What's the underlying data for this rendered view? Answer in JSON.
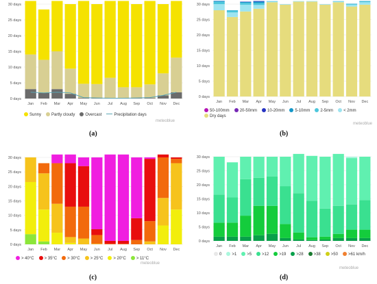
{
  "charts": [
    {
      "id": "a",
      "caption": "(a)",
      "credit": "meteoblue",
      "colors": {
        "Sunny": "#f5e200",
        "Partly cloudy": "#d8cf93",
        "Overcast": "#6b6b6b",
        "Precipitation days": "#5ba6b5"
      },
      "legend": [
        "Sunny",
        "Partly cloudy",
        "Overcast",
        "Precipitation days"
      ],
      "chart_data": {
        "type": "bar",
        "stacked": true,
        "categories": [
          "Jan",
          "Feb",
          "Mar",
          "Apr",
          "May",
          "Jun",
          "Jul",
          "Aug",
          "Sep",
          "Oct",
          "Nov",
          "Dec"
        ],
        "yticks": [
          "0 days",
          "5 days",
          "10 days",
          "15 days",
          "20 days",
          "25 days",
          "30 days"
        ],
        "ylim": [
          0,
          30
        ],
        "series": [
          {
            "name": "Overcast",
            "values": [
              3,
              1.8,
              3,
              1.5,
              0.2,
              0.1,
              0.1,
              0.1,
              0.1,
              0.2,
              1,
              2
            ]
          },
          {
            "name": "Partly cloudy",
            "values": [
              11,
              10.5,
              12,
              8,
              4.5,
              4.5,
              6.5,
              3.5,
              3.5,
              4.3,
              7,
              11
            ]
          },
          {
            "name": "Sunny",
            "values": [
              17,
              16,
              16,
              20.5,
              26.3,
              25.4,
              24.4,
              27.4,
              26.4,
              26.5,
              22,
              18
            ]
          }
        ],
        "line": {
          "name": "Precipitation days",
          "values": [
            2,
            1.8,
            2,
            1.8,
            0.3,
            0.2,
            0.1,
            0.1,
            0.2,
            0.3,
            1,
            2
          ]
        }
      }
    },
    {
      "id": "b",
      "caption": "(b)",
      "credit": "meteoblue",
      "colors": {
        "Dry days": "#e6dc7d",
        "< 2mm": "#9de4f0",
        "2-5mm": "#4cc6dc",
        "5-10mm": "#1497c8",
        "10-20mm": "#2633c2",
        "20-50mm": "#7628b5",
        "50-100mm": "#b515b5"
      },
      "legend": [
        "50-100mm",
        "20-50mm",
        "10-20mm",
        "5-10mm",
        "2-5mm",
        "< 2mm",
        "Dry days"
      ],
      "chart_data": {
        "type": "bar",
        "stacked": true,
        "categories": [
          "Jan",
          "Feb",
          "Mar",
          "Apr",
          "May",
          "Jun",
          "Jul",
          "Aug",
          "Sep",
          "Oct",
          "Nov",
          "Dec"
        ],
        "yticks": [
          "0 days",
          "5 days",
          "10 days",
          "15 days",
          "20 days",
          "25 days",
          "30 days"
        ],
        "ylim": [
          0,
          30
        ],
        "series": [
          {
            "name": "Dry days",
            "values": [
              28,
              25.8,
              27.6,
              28.5,
              30.6,
              29.8,
              30.8,
              30.8,
              29.8,
              30.6,
              29.2,
              29.8
            ]
          },
          {
            "name": "< 2mm",
            "values": [
              2,
              1.5,
              2.2,
              1.2,
              0.2,
              0.1,
              0.1,
              0.1,
              0.1,
              0.2,
              0.6,
              0.8
            ]
          },
          {
            "name": "2-5mm",
            "values": [
              0.8,
              0.6,
              0.6,
              0.6,
              0.1,
              0.05,
              0.05,
              0.05,
              0.05,
              0.1,
              0.2,
              0.3
            ]
          },
          {
            "name": "5-10mm",
            "values": [
              0.2,
              0.1,
              0.3,
              0.5,
              0.05,
              0,
              0,
              0,
              0,
              0.05,
              0.1,
              0.1
            ]
          },
          {
            "name": "10-20mm",
            "values": [
              0.05,
              0,
              0.1,
              0.2,
              0,
              0,
              0,
              0,
              0,
              0,
              0,
              0
            ]
          },
          {
            "name": "20-50mm",
            "values": [
              0,
              0,
              0,
              0,
              0,
              0,
              0,
              0,
              0,
              0,
              0,
              0
            ]
          },
          {
            "name": "50-100mm",
            "values": [
              0,
              0,
              0,
              0,
              0,
              0,
              0,
              0,
              0,
              0,
              0,
              0
            ]
          }
        ]
      }
    },
    {
      "id": "c",
      "caption": "(c)",
      "credit": "meteoblue",
      "colors": {
        "> 40°C": "#f01ee0",
        "> 35°C": "#e80e0e",
        "> 30°C": "#f26a0c",
        "> 25°C": "#f6c31c",
        "> 20°C": "#f2ee0c",
        "> 11°C": "#8ce63a"
      },
      "legend": [
        "> 40°C",
        "> 35°C",
        "> 30°C",
        "> 25°C",
        "> 20°C",
        "> 11°C"
      ],
      "chart_data": {
        "type": "bar",
        "stacked": true,
        "categories": [
          "Jan",
          "Feb",
          "Mar",
          "Apr",
          "May",
          "Jun",
          "Jul",
          "Aug",
          "Sep",
          "Oct",
          "Nov",
          "Dec"
        ],
        "yticks": [
          "0 days",
          "5 days",
          "10 days",
          "15 days",
          "20 days",
          "25 days",
          "30 days"
        ],
        "ylim": [
          0,
          30
        ],
        "series": [
          {
            "name": "> 11°C",
            "values": [
              3.5,
              1,
              0,
              0,
              0,
              0,
              0,
              0,
              0,
              0,
              0,
              0
            ]
          },
          {
            "name": "> 20°C",
            "values": [
              18,
              11,
              4,
              0.5,
              0,
              0,
              0,
              0,
              0,
              0,
              6.5,
              12
            ]
          },
          {
            "name": "> 25°C",
            "values": [
              8.5,
              12.5,
              10,
              2,
              2,
              0.2,
              0,
              0,
              0,
              1,
              9.5,
              16
            ]
          },
          {
            "name": "> 30°C",
            "values": [
              0,
              3.5,
              14,
              10.5,
              11,
              3,
              0.2,
              0.2,
              1.5,
              7,
              14,
              1.5
            ]
          },
          {
            "name": "> 35°C",
            "values": [
              0,
              0,
              0,
              15,
              14,
              2,
              1,
              1,
              7.5,
              21.5,
              1,
              0.5
            ]
          },
          {
            "name": "> 40°C",
            "values": [
              0,
              0,
              3,
              3,
              3,
              24.8,
              29.8,
              29.8,
              21,
              0.5,
              0,
              0
            ]
          }
        ]
      }
    },
    {
      "id": "d",
      "caption": "(d)",
      "credit": "meteoblue",
      "colors": {
        "0": "#e8e8e8",
        ">1": "#aaf7dd",
        ">5": "#60f0b0",
        ">12": "#3ae090",
        ">19": "#14cc3c",
        ">28": "#08a04a",
        ">38": "#1a7a30",
        ">50": "#cfcf18",
        ">61 km/h": "#f08030"
      },
      "legend": [
        "0",
        ">1",
        ">5",
        ">12",
        ">19",
        ">28",
        ">38",
        ">50",
        ">61 km/h"
      ],
      "chart_data": {
        "type": "bar",
        "stacked": true,
        "categories": [
          "Jan",
          "Feb",
          "Mar",
          "Apr",
          "May",
          "Jun",
          "Jul",
          "Aug",
          "Sep",
          "Oct",
          "Nov",
          "Dec"
        ],
        "yticks": [
          "0 days",
          "5 days",
          "10 days",
          "15 days",
          "20 days",
          "25 days",
          "30 days"
        ],
        "ylim": [
          0,
          30
        ],
        "series": [
          {
            "name": ">28",
            "values": [
              1.5,
              1.5,
              1.5,
              2,
              2.5,
              1,
              0.5,
              0.3,
              0.5,
              1,
              1,
              1
            ]
          },
          {
            "name": ">19",
            "values": [
              5,
              5,
              7.5,
              10.5,
              10,
              5,
              2.5,
              1,
              1,
              1.5,
              3,
              3
            ]
          },
          {
            "name": ">12",
            "values": [
              10,
              9,
              13,
              10,
              10.5,
              13.5,
              14,
              13,
              10,
              10,
              9,
              10.5
            ]
          },
          {
            "name": ">5",
            "values": [
              13.5,
              12.5,
              8,
              7.5,
              7,
              10.5,
              14,
              16,
              18.5,
              18.5,
              16.5,
              15.5
            ]
          },
          {
            "name": ">1",
            "values": [
              0,
              0,
              0,
              0,
              0,
              0,
              0,
              0,
              0,
              0,
              0.5,
              0
            ]
          }
        ]
      }
    }
  ]
}
